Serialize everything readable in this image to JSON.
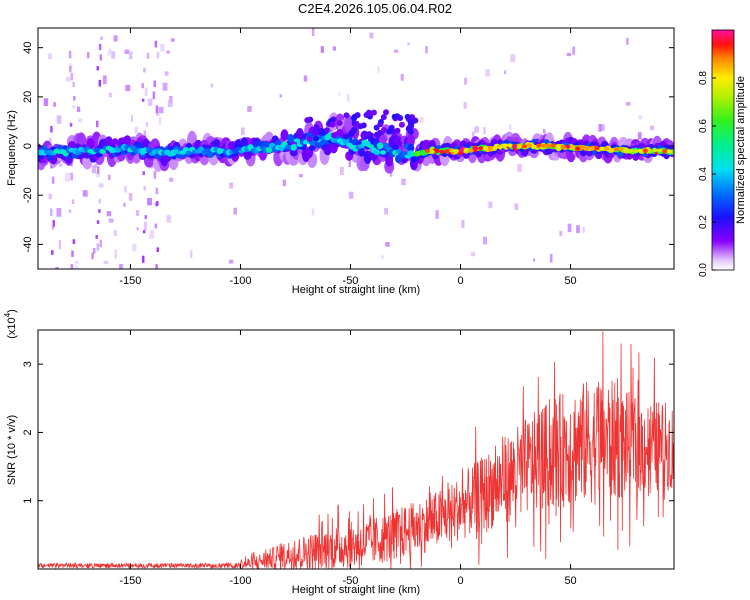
{
  "title": "C2E4.2026.105.06.04.R02",
  "chart_data": [
    {
      "type": "heatmap",
      "xlabel": "Height of straight line (km)",
      "ylabel": "Frequency (Hz)",
      "xlim": [
        -192,
        97
      ],
      "ylim": [
        -50,
        48
      ],
      "x_ticks": [
        -150,
        -100,
        -50,
        0,
        50
      ],
      "y_ticks": [
        -40,
        -20,
        0,
        20,
        40
      ],
      "colorbar": {
        "label": "Normalized spectral amplitude",
        "range": [
          0,
          1
        ],
        "ticks": [
          0.0,
          0.2,
          0.4,
          0.6,
          0.8
        ],
        "tick_labels": [
          "0.0",
          "0.2",
          "0.4",
          "0.6",
          "0.8"
        ]
      },
      "ridge": [
        {
          "x": -190,
          "f": -3,
          "amp": 0.45
        },
        {
          "x": -170,
          "f": -2,
          "amp": 0.45
        },
        {
          "x": -150,
          "f": -1,
          "amp": 0.45
        },
        {
          "x": -135,
          "f": -3,
          "amp": 0.5
        },
        {
          "x": -120,
          "f": -2,
          "amp": 0.45
        },
        {
          "x": -100,
          "f": -2,
          "amp": 0.45
        },
        {
          "x": -80,
          "f": 0,
          "amp": 0.45
        },
        {
          "x": -60,
          "f": 3,
          "amp": 0.5
        },
        {
          "x": -45,
          "f": 0,
          "amp": 0.45
        },
        {
          "x": -30,
          "f": -2,
          "amp": 0.45
        },
        {
          "x": -22,
          "f": -3,
          "amp": 0.55
        },
        {
          "x": -15,
          "f": -2,
          "amp": 0.9
        },
        {
          "x": 0,
          "f": -2,
          "amp": 0.95
        },
        {
          "x": 20,
          "f": 0,
          "amp": 0.95
        },
        {
          "x": 40,
          "f": 0,
          "amp": 0.95
        },
        {
          "x": 60,
          "f": -1,
          "amp": 0.95
        },
        {
          "x": 80,
          "f": -2,
          "amp": 0.9
        },
        {
          "x": 95,
          "f": -2,
          "amp": 0.9
        }
      ]
    },
    {
      "type": "line",
      "xlabel": "Height of straight line (km)",
      "ylabel": "SNR (10 * v/v)",
      "y_multiplier": "(x10",
      "y_multiplier_exp": "4",
      "xlim": [
        -192,
        97
      ],
      "ylim": [
        0,
        35000
      ],
      "x_ticks": [
        -150,
        -100,
        -50,
        0,
        50
      ],
      "y_ticks": [
        10000,
        20000,
        30000
      ],
      "y_tick_labels": [
        "1",
        "2",
        "3"
      ],
      "series": [
        {
          "color": "#ee3333",
          "envelope": [
            {
              "x": -192,
              "mean": 300,
              "amp": 400
            },
            {
              "x": -150,
              "mean": 300,
              "amp": 400
            },
            {
              "x": -110,
              "mean": 400,
              "amp": 500
            },
            {
              "x": -95,
              "mean": 800,
              "amp": 1200
            },
            {
              "x": -80,
              "mean": 2000,
              "amp": 2500
            },
            {
              "x": -60,
              "mean": 3000,
              "amp": 4000
            },
            {
              "x": -40,
              "mean": 4000,
              "amp": 4500
            },
            {
              "x": -20,
              "mean": 6000,
              "amp": 5000
            },
            {
              "x": -5,
              "mean": 8000,
              "amp": 5500
            },
            {
              "x": 10,
              "mean": 11000,
              "amp": 7000
            },
            {
              "x": 30,
              "mean": 15000,
              "amp": 9000
            },
            {
              "x": 50,
              "mean": 18000,
              "amp": 11000
            },
            {
              "x": 65,
              "mean": 19000,
              "amp": 12000
            },
            {
              "x": 80,
              "mean": 18000,
              "amp": 9000
            },
            {
              "x": 97,
              "mean": 18000,
              "amp": 8000
            }
          ]
        }
      ]
    }
  ]
}
